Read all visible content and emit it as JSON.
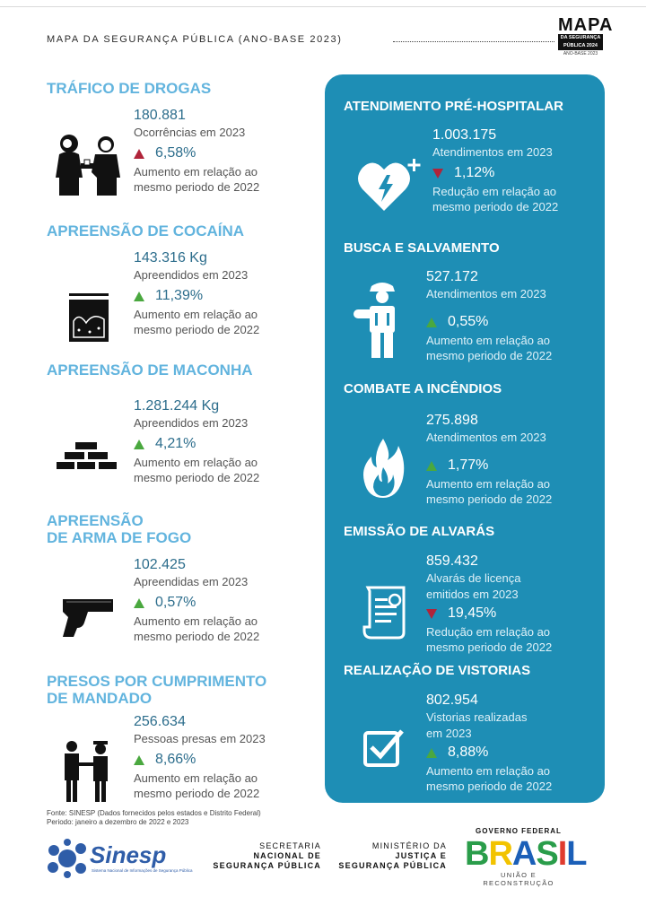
{
  "header": {
    "title": "MAPA DA SEGURANÇA PÚBLICA (ANO-BASE 2023)",
    "logo_main": "MAPA",
    "logo_line1": "DA SEGURANÇA",
    "logo_line2": "PÚBLICA 2024",
    "logo_sub": "ANO-BASE 2023"
  },
  "left": {
    "trafico": {
      "title": "TRÁFICO DE DROGAS",
      "value": "180.881",
      "desc": "Ocorrências em 2023",
      "pct": "6,58%",
      "trend": "up",
      "note1": "Aumento em relação ao",
      "note2": "mesmo periodo de 2022",
      "icon": "drug-dealing-icon"
    },
    "cocaina": {
      "title": "APREENSÃO DE COCAÍNA",
      "value": "143.316 Kg",
      "desc": "Apreendidos em 2023",
      "pct": "11,39%",
      "trend": "up",
      "note1": "Aumento em relação ao",
      "note2": "mesmo periodo de 2022",
      "icon": "cocaine-bag-icon"
    },
    "maconha": {
      "title": "APREENSÃO DE MACONHA",
      "value": "1.281.244 Kg",
      "desc": "Apreendidos em 2023",
      "pct": "4,21%",
      "trend": "up",
      "note1": "Aumento em relação ao",
      "note2": "mesmo periodo de 2022",
      "icon": "bricks-icon"
    },
    "arma": {
      "title1": "APREENSÃO",
      "title2": "DE ARMA DE FOGO",
      "value": "102.425",
      "desc": "Apreendidas em 2023",
      "pct": "0,57%",
      "trend": "up",
      "note1": "Aumento em relação ao",
      "note2": "mesmo periodo de 2022",
      "icon": "pistol-icon"
    },
    "presos": {
      "title1": "PRESOS POR CUMPRIMENTO",
      "title2": "DE MANDADO",
      "value": "256.634",
      "desc": "Pessoas presas em 2023",
      "pct": "8,66%",
      "trend": "up",
      "note1": "Aumento em relação ao",
      "note2": "mesmo periodo de 2022",
      "icon": "arrest-icon"
    }
  },
  "right": {
    "aph": {
      "title": "ATENDIMENTO PRÉ-HOSPITALAR",
      "value": "1.003.175",
      "desc": "Atendimentos em 2023",
      "pct": "1,12%",
      "trend": "down",
      "note1": "Redução em relação ao",
      "note2": "mesmo periodo de 2022",
      "icon": "heart-defibrillator-icon"
    },
    "busca": {
      "title": "BUSCA E SALVAMENTO",
      "value": "527.172",
      "desc": "Atendimentos em 2023",
      "pct": "0,55%",
      "trend": "up",
      "note1": "Aumento em relação ao",
      "note2": "mesmo periodo de 2022",
      "icon": "firefighter-rescue-icon"
    },
    "incendios": {
      "title": "COMBATE A INCÊNDIOS",
      "value": "275.898",
      "desc": "Atendimentos em 2023",
      "pct": "1,77%",
      "trend": "up",
      "note1": "Aumento em relação ao",
      "note2": "mesmo periodo de 2022",
      "icon": "flame-icon"
    },
    "alvaras": {
      "title": "EMISSÃO DE ALVARÁS",
      "value": "859.432",
      "desc1": "Alvarás de licença",
      "desc2": "emitidos em 2023",
      "pct": "19,45%",
      "trend": "down",
      "note1": "Redução em relação ao",
      "note2": "mesmo periodo de 2022",
      "icon": "certificate-scroll-icon"
    },
    "vistorias": {
      "title": "REALIZAÇÃO DE VISTORIAS",
      "value": "802.954",
      "desc1": "Vistorias realizadas",
      "desc2": "em 2023",
      "pct": "8,88%",
      "trend": "up",
      "note1": "Aumento em relação ao",
      "note2": "mesmo periodo de 2022",
      "icon": "checkbox-icon"
    }
  },
  "source": {
    "line1": "Fonte: SINESP (Dados fornecidos pelos estados e Distrito Federal)",
    "line2": "Periodo: janeiro a dezembro de 2022 e 2023"
  },
  "footer": {
    "sinesp": "Sinesp",
    "sinesp_sub": "Sistema Nacional de Informações de Segurança Pública",
    "sec1": "SECRETARIA",
    "sec2": "NACIONAL DE",
    "sec3": "SEGURANÇA PÚBLICA",
    "min1": "MINISTÉRIO DA",
    "min2": "JUSTIÇA E",
    "min3": "SEGURANÇA PÚBLICA",
    "gov_title": "GOVERNO FEDERAL",
    "gov_brand": "BRASIL",
    "gov_sub": "UNIÃO E RECONSTRUÇÃO"
  },
  "colors": {
    "title_blue": "#62b4de",
    "value_blue": "#2c6d8c",
    "panel_blue": "#1e8eb5",
    "up_green": "#4aa83f",
    "down_red": "#b0243a"
  }
}
